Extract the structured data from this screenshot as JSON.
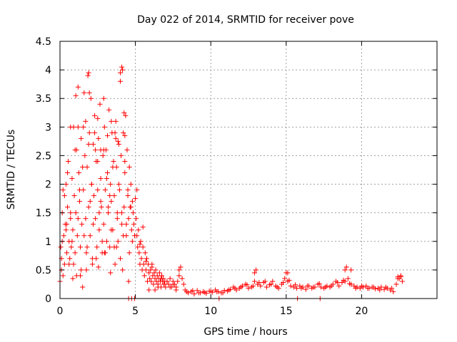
{
  "chart_data": {
    "type": "scatter",
    "title": "Day 022 of 2014, SRMTID for receiver pove",
    "xlabel": "GPS time / hours",
    "ylabel": "SRMTID / TECUs",
    "xlim": [
      0,
      25
    ],
    "ylim": [
      0,
      4.5
    ],
    "x_ticks": [
      0,
      5,
      10,
      15,
      20
    ],
    "y_ticks": [
      0,
      0.5,
      1,
      1.5,
      2,
      2.5,
      3,
      3.5,
      4,
      4.5
    ],
    "x_tick_labels": [
      "0",
      "5",
      "10",
      "15",
      "20"
    ],
    "y_tick_labels": [
      "0",
      "0.5",
      "1",
      "1.5",
      "2",
      "2.5",
      "3",
      "3.5",
      "4",
      "4.5"
    ],
    "grid": true,
    "marker": "plus",
    "color": "#ff0000",
    "series": [
      {
        "x": [
          0.0,
          0.05,
          0.1,
          0.15,
          0.2,
          0.25,
          0.3,
          0.35,
          0.4,
          0.45,
          0.5,
          0.55,
          0.6,
          0.65,
          0.7,
          0.75,
          0.8,
          0.85,
          0.9,
          0.95,
          1.0,
          1.05,
          1.1,
          1.15,
          1.2,
          1.25,
          1.3,
          1.35,
          1.4,
          1.45,
          1.5,
          1.55,
          1.6,
          1.65,
          1.7,
          1.75,
          1.8,
          1.85,
          1.9,
          1.95,
          2.0,
          2.05,
          2.1,
          2.15,
          2.2,
          2.25,
          2.3,
          2.35,
          2.4,
          2.45,
          2.5,
          2.55,
          2.6,
          2.65,
          2.7,
          2.75,
          2.8,
          2.85,
          2.9,
          2.95,
          3.0,
          3.05,
          3.1,
          3.15,
          3.2,
          3.25,
          3.3,
          3.35,
          3.4,
          3.45,
          3.5,
          3.55,
          3.6,
          3.65,
          3.7,
          3.75,
          3.8,
          3.85,
          3.9,
          3.95,
          4.0,
          4.05,
          4.1,
          4.15,
          4.2,
          4.25,
          4.3,
          4.35,
          4.4,
          4.45,
          4.5,
          4.55,
          4.6,
          4.65,
          4.7,
          4.75,
          4.8,
          4.85,
          4.9,
          4.95,
          0.1,
          0.3,
          0.5,
          0.7,
          0.9,
          1.1,
          1.3,
          1.5,
          1.7,
          1.9,
          2.1,
          2.3,
          2.5,
          2.7,
          2.9,
          3.1,
          3.3,
          3.5,
          3.7,
          3.9,
          4.1,
          4.3,
          4.5,
          4.7,
          0.2,
          0.4,
          0.6,
          0.8,
          1.0,
          1.2,
          1.4,
          1.6,
          1.8,
          2.0,
          2.2,
          2.4,
          2.6,
          2.8,
          3.0,
          3.2,
          3.4,
          3.6,
          3.8,
          4.0,
          4.2,
          4.4,
          4.6,
          4.8,
          1.2,
          1.9,
          1.95,
          2.5,
          2.9,
          3.4,
          4.0,
          4.1,
          4.25,
          0.7,
          1.05,
          1.55,
          2.35,
          2.7,
          3.15,
          3.65,
          3.85,
          4.3,
          0.15,
          0.45,
          0.85,
          1.35,
          1.75,
          2.15,
          2.55,
          2.95,
          3.35,
          3.75,
          4.15,
          4.55
        ],
        "y": [
          0.3,
          0.9,
          0.5,
          1.5,
          1.9,
          1.1,
          0.6,
          1.3,
          2.0,
          0.8,
          1.6,
          2.4,
          1.0,
          0.7,
          1.4,
          0.9,
          2.1,
          1.2,
          0.6,
          1.8,
          2.6,
          1.5,
          0.4,
          1.1,
          3.0,
          2.2,
          1.7,
          0.9,
          2.8,
          1.3,
          0.2,
          1.9,
          3.6,
          2.5,
          1.4,
          0.8,
          2.3,
          3.9,
          1.6,
          2.9,
          1.1,
          3.5,
          2.0,
          0.7,
          2.7,
          1.8,
          3.2,
          1.4,
          2.4,
          0.9,
          1.9,
          2.8,
          1.2,
          3.4,
          2.1,
          1.6,
          0.8,
          2.5,
          1.3,
          3.0,
          1.9,
          2.6,
          1.0,
          2.2,
          1.5,
          3.3,
          0.9,
          2.0,
          1.7,
          2.9,
          1.2,
          2.4,
          1.8,
          0.6,
          3.1,
          2.3,
          1.5,
          1.0,
          2.7,
          1.9,
          3.8,
          2.5,
          1.3,
          4.0,
          2.9,
          1.6,
          2.2,
          3.2,
          1.1,
          2.6,
          1.8,
          1.4,
          2.3,
          1.6,
          2.0,
          1.2,
          1.7,
          1.5,
          1.3,
          1.1,
          0.7,
          1.8,
          2.2,
          1.5,
          3.0,
          2.6,
          1.9,
          2.3,
          3.1,
          2.7,
          2.0,
          2.9,
          2.4,
          1.7,
          2.6,
          2.1,
          1.8,
          2.3,
          2.8,
          2.0,
          1.5,
          2.4,
          1.9,
          1.6,
          0.4,
          1.2,
          0.6,
          1.0,
          0.8,
          1.4,
          0.5,
          1.1,
          0.9,
          1.7,
          1.3,
          0.7,
          1.5,
          1.0,
          0.8,
          1.6,
          1.2,
          0.9,
          1.4,
          0.7,
          1.1,
          1.3,
          0.8,
          1.0,
          3.7,
          3.95,
          3.6,
          3.15,
          3.5,
          3.1,
          3.95,
          4.05,
          3.25,
          3.0,
          3.55,
          3.0,
          2.6,
          2.6,
          2.85,
          2.9,
          2.75,
          2.85,
          1.0,
          1.3,
          0.35,
          0.4,
          0.5,
          0.6,
          0.55,
          0.8,
          0.45,
          0.9,
          0.5,
          0.3
        ]
      },
      {
        "x": [
          5.0,
          5.05,
          5.1,
          5.15,
          5.2,
          5.25,
          5.3,
          5.35,
          5.4,
          5.45,
          5.5,
          5.55,
          5.6,
          5.65,
          5.7,
          5.75,
          5.8,
          5.85,
          5.9,
          5.95,
          6.0,
          6.05,
          6.1,
          6.15,
          6.2,
          6.25,
          6.3,
          6.35,
          6.4,
          6.45,
          6.5,
          6.55,
          6.6,
          6.65,
          6.7,
          6.75,
          6.8,
          6.85,
          6.9,
          6.95,
          7.0,
          7.1,
          7.2,
          7.3,
          7.4,
          7.5,
          7.6,
          7.7,
          7.8,
          7.9,
          8.0,
          8.1,
          8.2,
          5.1,
          5.3,
          5.5,
          5.7,
          5.9,
          6.1,
          6.3,
          6.5,
          6.7,
          6.9,
          7.1,
          7.3,
          7.5,
          7.7,
          7.9
        ],
        "y": [
          1.75,
          1.4,
          1.1,
          0.9,
          1.2,
          0.8,
          0.6,
          1.0,
          0.7,
          0.5,
          0.9,
          0.6,
          0.4,
          0.8,
          0.5,
          0.7,
          0.3,
          0.6,
          0.45,
          0.35,
          0.5,
          0.3,
          0.55,
          0.4,
          0.25,
          0.45,
          0.35,
          0.5,
          0.3,
          0.4,
          0.25,
          0.35,
          0.45,
          0.3,
          0.2,
          0.4,
          0.3,
          0.35,
          0.25,
          0.3,
          0.2,
          0.3,
          0.25,
          0.35,
          0.2,
          0.3,
          0.25,
          0.2,
          0.3,
          0.5,
          0.55,
          0.35,
          0.25,
          1.9,
          0.95,
          1.25,
          0.65,
          0.15,
          0.6,
          0.15,
          0.2,
          0.35,
          0.25,
          0.3,
          0.2,
          0.25,
          0.15,
          0.4
        ]
      },
      {
        "x": [
          8.3,
          8.5,
          8.7,
          8.9,
          9.1,
          9.3,
          9.5,
          9.7,
          9.9,
          10.1,
          10.3,
          10.5,
          10.7,
          10.9,
          11.1,
          11.3,
          11.5,
          11.7,
          11.9,
          12.1,
          12.3,
          12.5,
          12.7,
          12.9,
          13.1,
          13.3,
          13.5,
          13.7,
          13.9,
          14.1,
          14.3,
          14.5,
          14.7,
          14.9,
          15.1,
          15.3,
          15.5,
          15.7,
          15.9,
          16.1,
          16.3,
          16.5,
          16.7,
          16.9,
          17.1,
          17.3,
          17.5,
          17.7,
          17.9,
          18.1,
          18.3,
          18.5,
          18.7,
          18.9,
          19.1,
          19.3,
          19.5,
          19.7,
          19.9,
          20.1,
          20.3,
          20.5,
          20.7,
          20.9,
          21.1,
          21.3,
          21.5,
          21.7,
          21.9,
          22.1,
          22.3,
          22.5,
          22.7,
          8.4,
          8.8,
          9.2,
          9.6,
          10.0,
          10.4,
          10.8,
          11.2,
          11.6,
          12.0,
          12.4,
          12.8,
          13.2,
          13.6,
          14.0,
          14.4,
          14.8,
          15.2,
          15.6,
          16.0,
          16.4,
          16.8,
          17.2,
          17.6,
          18.0,
          18.4,
          18.8,
          19.2,
          19.6,
          20.0,
          20.4,
          20.8,
          21.2,
          21.6,
          22.0,
          22.4,
          22.6,
          12.9,
          13.0,
          15.0,
          15.1,
          18.9,
          19.0,
          19.3,
          22.4,
          22.6
        ],
        "y": [
          0.15,
          0.1,
          0.12,
          0.08,
          0.14,
          0.1,
          0.12,
          0.09,
          0.13,
          0.11,
          0.15,
          0.12,
          0.1,
          0.14,
          0.13,
          0.16,
          0.2,
          0.15,
          0.18,
          0.22,
          0.25,
          0.18,
          0.2,
          0.3,
          0.25,
          0.22,
          0.28,
          0.2,
          0.24,
          0.3,
          0.22,
          0.18,
          0.25,
          0.35,
          0.3,
          0.22,
          0.2,
          0.18,
          0.22,
          0.2,
          0.16,
          0.22,
          0.18,
          0.2,
          0.25,
          0.2,
          0.18,
          0.22,
          0.2,
          0.25,
          0.3,
          0.22,
          0.28,
          0.3,
          0.35,
          0.25,
          0.22,
          0.2,
          0.18,
          0.2,
          0.22,
          0.18,
          0.2,
          0.17,
          0.18,
          0.2,
          0.16,
          0.18,
          0.15,
          0.12,
          0.25,
          0.35,
          0.3,
          0.12,
          0.14,
          0.1,
          0.11,
          0.13,
          0.12,
          0.1,
          0.15,
          0.18,
          0.2,
          0.24,
          0.22,
          0.28,
          0.3,
          0.25,
          0.2,
          0.28,
          0.32,
          0.24,
          0.18,
          0.22,
          0.2,
          0.26,
          0.2,
          0.22,
          0.28,
          0.32,
          0.26,
          0.18,
          0.22,
          0.18,
          0.2,
          0.15,
          0.2,
          0.18,
          0.38,
          0.4,
          0.45,
          0.5,
          0.45,
          0.45,
          0.5,
          0.55,
          0.5,
          0.35,
          0.38
        ]
      },
      {
        "x": [
          4.55,
          4.75,
          4.95,
          10.55,
          15.75,
          17.25
        ],
        "y": [
          0.0,
          0.0,
          0.0,
          0.0,
          0.0,
          0.0
        ]
      }
    ]
  }
}
